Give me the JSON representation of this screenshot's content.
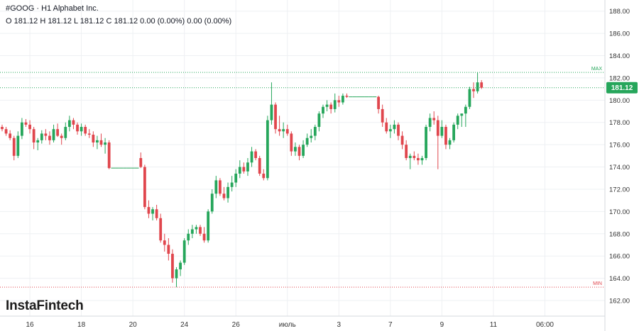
{
  "header": {
    "line1": "#GOOG · H1 Alphabet Inc.",
    "line2": "O 181.12 H 181.12 L 181.12 C 181.12 0.00 (0.00%) 0.00 (0.00%)"
  },
  "logo": "InstaFintech",
  "colors": {
    "up": "#26a65b",
    "down": "#e0464d",
    "grid": "#eef0f3",
    "last_bg": "#26a65b"
  },
  "chart_data": {
    "type": "candlestick",
    "symbol": "#GOOG",
    "timeframe": "H1",
    "ylim": [
      160.6,
      189.0
    ],
    "y_ticks": [
      "188.00",
      "186.00",
      "184.00",
      "182.00",
      "180.00",
      "178.00",
      "176.00",
      "174.00",
      "172.00",
      "170.00",
      "168.00",
      "166.00",
      "164.00",
      "162.00"
    ],
    "x_ticks": [
      {
        "label": "16",
        "i": 7
      },
      {
        "label": "18",
        "i": 20
      },
      {
        "label": "20",
        "i": 33
      },
      {
        "label": "24",
        "i": 46
      },
      {
        "label": "26",
        "i": 59
      },
      {
        "label": "июль",
        "i": 72
      },
      {
        "label": "3",
        "i": 85
      },
      {
        "label": "7",
        "i": 98
      },
      {
        "label": "9",
        "i": 111
      },
      {
        "label": "11",
        "i": 124
      },
      {
        "label": "06:00",
        "i": 137
      }
    ],
    "max_label": "MAX",
    "min_label": "MIN",
    "max_value": 182.5,
    "min_value": 163.2,
    "last_price": "181.12",
    "last_value": 181.12,
    "candles": [
      [
        177.6,
        177.8,
        177.2,
        177.4
      ],
      [
        177.4,
        177.6,
        176.8,
        177.0
      ],
      [
        177.0,
        177.3,
        176.4,
        176.6
      ],
      [
        176.6,
        176.8,
        174.6,
        175.0
      ],
      [
        175.0,
        177.2,
        174.8,
        176.8
      ],
      [
        176.8,
        178.4,
        176.5,
        178.0
      ],
      [
        178.0,
        178.3,
        177.6,
        177.8
      ],
      [
        177.8,
        178.2,
        177.0,
        177.4
      ],
      [
        177.4,
        177.6,
        175.6,
        176.2
      ],
      [
        176.2,
        176.6,
        175.5,
        176.4
      ],
      [
        176.4,
        177.3,
        176.1,
        177.0
      ],
      [
        177.0,
        177.4,
        176.4,
        176.8
      ],
      [
        176.8,
        177.2,
        176.0,
        176.4
      ],
      [
        176.4,
        177.8,
        176.2,
        177.4
      ],
      [
        177.4,
        177.9,
        176.7,
        176.8
      ],
      [
        176.8,
        177.0,
        176.0,
        176.6
      ],
      [
        176.6,
        178.0,
        176.4,
        177.6
      ],
      [
        177.6,
        178.6,
        177.2,
        178.2
      ],
      [
        178.2,
        178.4,
        177.4,
        177.8
      ],
      [
        177.8,
        178.0,
        176.9,
        177.2
      ],
      [
        177.2,
        177.9,
        176.8,
        177.6
      ],
      [
        177.6,
        177.8,
        176.8,
        177.0
      ],
      [
        177.0,
        177.4,
        176.6,
        176.9
      ],
      [
        176.9,
        177.2,
        175.8,
        176.2
      ],
      [
        176.2,
        176.8,
        175.6,
        176.4
      ],
      [
        176.4,
        177.0,
        175.8,
        176.0
      ],
      [
        176.0,
        176.6,
        175.2,
        176.2
      ],
      [
        176.2,
        176.4,
        173.8,
        173.9
      ],
      [
        173.9,
        174.0,
        173.8,
        173.9
      ],
      [
        173.9,
        174.0,
        173.8,
        173.9
      ],
      [
        173.9,
        174.0,
        173.8,
        173.9
      ],
      [
        173.9,
        174.0,
        173.8,
        173.9
      ],
      [
        173.9,
        174.0,
        173.8,
        173.9
      ],
      [
        173.9,
        174.0,
        173.8,
        173.9
      ],
      [
        173.9,
        174.0,
        173.8,
        173.9
      ],
      [
        174.8,
        175.3,
        173.9,
        174.0
      ],
      [
        174.0,
        174.2,
        170.2,
        170.4
      ],
      [
        170.4,
        171.0,
        169.4,
        169.8
      ],
      [
        169.8,
        170.4,
        169.2,
        170.2
      ],
      [
        170.2,
        170.6,
        169.2,
        169.4
      ],
      [
        169.4,
        169.8,
        167.2,
        167.4
      ],
      [
        167.4,
        168.0,
        166.4,
        167.0
      ],
      [
        167.0,
        167.6,
        165.6,
        166.2
      ],
      [
        166.2,
        166.6,
        163.6,
        164.0
      ],
      [
        164.0,
        165.0,
        163.2,
        164.8
      ],
      [
        164.8,
        165.6,
        164.2,
        165.4
      ],
      [
        165.4,
        167.6,
        165.2,
        167.4
      ],
      [
        167.4,
        168.4,
        167.0,
        168.0
      ],
      [
        168.0,
        168.8,
        167.6,
        168.4
      ],
      [
        168.4,
        168.8,
        168.0,
        168.6
      ],
      [
        168.6,
        168.8,
        167.8,
        168.0
      ],
      [
        168.0,
        168.6,
        167.2,
        167.4
      ],
      [
        167.4,
        170.2,
        167.2,
        170.0
      ],
      [
        170.0,
        172.0,
        169.8,
        171.6
      ],
      [
        171.6,
        173.2,
        171.2,
        172.8
      ],
      [
        172.8,
        173.0,
        171.4,
        171.6
      ],
      [
        171.6,
        172.2,
        171.0,
        171.2
      ],
      [
        171.2,
        172.6,
        170.8,
        172.2
      ],
      [
        172.2,
        173.2,
        171.8,
        172.6
      ],
      [
        172.6,
        173.8,
        172.2,
        173.4
      ],
      [
        173.4,
        174.6,
        173.0,
        174.0
      ],
      [
        174.0,
        174.4,
        173.4,
        173.6
      ],
      [
        173.6,
        174.8,
        173.2,
        174.4
      ],
      [
        174.4,
        175.8,
        174.0,
        175.4
      ],
      [
        175.4,
        175.6,
        174.6,
        174.8
      ],
      [
        174.8,
        175.0,
        173.2,
        173.4
      ],
      [
        173.4,
        173.8,
        172.8,
        173.0
      ],
      [
        173.0,
        178.6,
        172.8,
        178.2
      ],
      [
        178.2,
        181.6,
        177.8,
        179.6
      ],
      [
        179.6,
        179.8,
        177.0,
        177.4
      ],
      [
        177.4,
        178.6,
        176.8,
        177.2
      ],
      [
        177.2,
        178.0,
        176.6,
        177.4
      ],
      [
        177.4,
        177.8,
        176.8,
        177.0
      ],
      [
        177.0,
        177.2,
        175.0,
        175.4
      ],
      [
        175.4,
        176.2,
        175.0,
        175.8
      ],
      [
        175.8,
        176.0,
        174.6,
        175.0
      ],
      [
        175.0,
        176.4,
        174.8,
        176.0
      ],
      [
        176.0,
        177.0,
        175.8,
        176.6
      ],
      [
        176.6,
        177.4,
        176.2,
        176.8
      ],
      [
        176.8,
        177.8,
        176.4,
        177.6
      ],
      [
        177.6,
        179.0,
        177.2,
        178.8
      ],
      [
        178.8,
        179.6,
        178.4,
        179.4
      ],
      [
        179.4,
        180.0,
        179.0,
        179.6
      ],
      [
        179.6,
        179.8,
        178.8,
        179.2
      ],
      [
        179.2,
        180.6,
        178.9,
        180.0
      ],
      [
        180.0,
        180.4,
        179.4,
        179.8
      ],
      [
        179.8,
        180.6,
        179.6,
        180.4
      ],
      [
        180.4,
        180.6,
        180.2,
        180.3
      ],
      [
        180.3,
        180.4,
        180.2,
        180.3
      ],
      [
        180.3,
        180.4,
        180.2,
        180.3
      ],
      [
        180.3,
        180.4,
        180.2,
        180.3
      ],
      [
        180.3,
        180.4,
        180.2,
        180.3
      ],
      [
        180.3,
        180.4,
        180.2,
        180.3
      ],
      [
        180.3,
        180.4,
        180.2,
        180.3
      ],
      [
        180.3,
        180.4,
        180.2,
        180.3
      ],
      [
        180.3,
        180.4,
        178.8,
        179.2
      ],
      [
        179.2,
        179.6,
        177.6,
        178.0
      ],
      [
        178.0,
        178.4,
        177.0,
        177.2
      ],
      [
        177.2,
        177.8,
        176.6,
        177.4
      ],
      [
        177.4,
        178.2,
        177.0,
        177.8
      ],
      [
        177.8,
        178.0,
        176.4,
        176.8
      ],
      [
        176.8,
        177.2,
        175.6,
        176.0
      ],
      [
        176.0,
        176.4,
        174.6,
        174.8
      ],
      [
        174.8,
        175.2,
        173.8,
        175.0
      ],
      [
        175.0,
        175.4,
        174.6,
        174.8
      ],
      [
        174.8,
        175.2,
        174.2,
        174.6
      ],
      [
        174.6,
        175.0,
        174.2,
        174.8
      ],
      [
        174.8,
        177.8,
        174.6,
        177.6
      ],
      [
        177.6,
        178.8,
        177.2,
        178.4
      ],
      [
        178.4,
        179.0,
        177.8,
        178.2
      ],
      [
        178.2,
        178.6,
        173.8,
        176.8
      ],
      [
        176.8,
        178.2,
        176.6,
        177.6
      ],
      [
        177.6,
        177.8,
        175.6,
        176.0
      ],
      [
        176.0,
        176.6,
        175.6,
        176.4
      ],
      [
        176.4,
        178.0,
        176.2,
        177.8
      ],
      [
        177.8,
        178.8,
        177.4,
        178.6
      ],
      [
        178.6,
        178.8,
        177.6,
        178.8
      ],
      [
        178.8,
        179.6,
        177.6,
        179.4
      ],
      [
        179.4,
        181.2,
        179.2,
        181.0
      ],
      [
        181.0,
        181.6,
        180.2,
        180.8
      ],
      [
        180.8,
        182.5,
        180.6,
        181.6
      ],
      [
        181.6,
        181.8,
        181.0,
        181.12
      ]
    ]
  }
}
